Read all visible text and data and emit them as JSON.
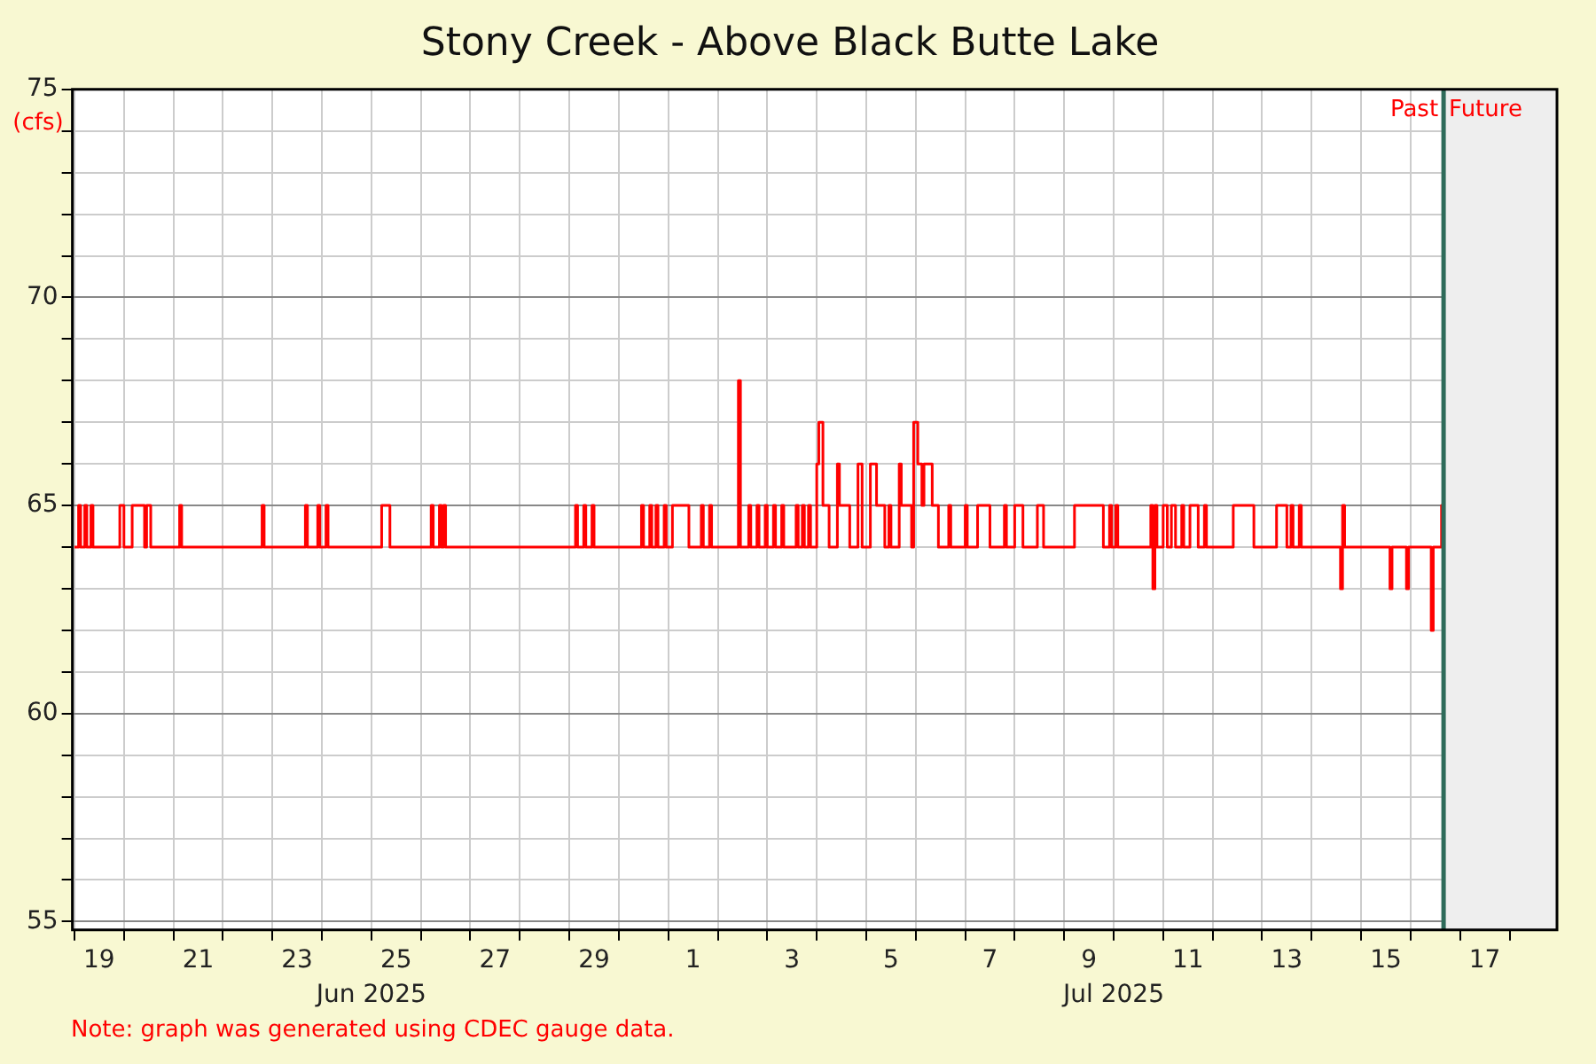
{
  "chart_data": {
    "type": "step",
    "title": "Stony Creek - Above Black Butte Lake",
    "ylabel": "(cfs)",
    "annotations": [
      "Note: graph was generated using CDEC gauge data."
    ],
    "color": "#ff0000",
    "x": [
      "2025-06-19T00:00",
      "2025-06-19T02:00",
      "2025-06-19T03:00",
      "2025-06-19T05:00",
      "2025-06-19T06:00",
      "2025-06-19T08:00",
      "2025-06-19T09:00",
      "2025-06-19T22:00",
      "2025-06-20T00:00",
      "2025-06-20T04:00",
      "2025-06-20T10:00",
      "2025-06-20T11:00",
      "2025-06-20T13:00",
      "2025-06-21T03:00",
      "2025-06-21T04:00",
      "2025-06-22T19:00",
      "2025-06-22T20:00",
      "2025-06-23T16:00",
      "2025-06-23T17:00",
      "2025-06-23T22:00",
      "2025-06-23T23:00",
      "2025-06-24T02:00",
      "2025-06-24T03:00",
      "2025-06-25T05:00",
      "2025-06-25T08:00",
      "2025-06-25T09:00",
      "2025-06-26T05:00",
      "2025-06-26T06:00",
      "2025-06-26T09:00",
      "2025-06-26T10:00",
      "2025-06-26T11:00",
      "2025-06-26T12:00",
      "2025-06-29T03:00",
      "2025-06-29T04:00",
      "2025-06-29T07:00",
      "2025-06-29T08:00",
      "2025-06-29T11:00",
      "2025-06-29T12:00",
      "2025-06-30T11:00",
      "2025-06-30T12:00",
      "2025-06-30T15:00",
      "2025-06-30T16:00",
      "2025-06-30T18:00",
      "2025-06-30T19:00",
      "2025-06-30T22:00",
      "2025-06-30T23:00",
      "2025-07-01T02:00",
      "2025-07-01T09:00",
      "2025-07-01T10:00",
      "2025-07-01T16:00",
      "2025-07-01T17:00",
      "2025-07-01T20:00",
      "2025-07-01T21:00",
      "2025-07-02T10:00",
      "2025-07-02T11:00",
      "2025-07-02T15:00",
      "2025-07-02T16:00",
      "2025-07-02T19:00",
      "2025-07-02T20:00",
      "2025-07-02T23:00",
      "2025-07-03T00:00",
      "2025-07-03T03:00",
      "2025-07-03T04:00",
      "2025-07-03T07:00",
      "2025-07-03T08:00",
      "2025-07-03T14:00",
      "2025-07-03T15:00",
      "2025-07-03T17:00",
      "2025-07-03T18:00",
      "2025-07-03T20:00",
      "2025-07-03T21:00",
      "2025-07-04T00:00",
      "2025-07-04T01:00",
      "2025-07-04T02:00",
      "2025-07-04T03:00",
      "2025-07-04T06:00",
      "2025-07-04T10:00",
      "2025-07-04T11:00",
      "2025-07-04T15:00",
      "2025-07-04T16:00",
      "2025-07-04T20:00",
      "2025-07-04T22:00",
      "2025-07-05T02:00",
      "2025-07-05T04:00",
      "2025-07-05T05:00",
      "2025-07-05T09:00",
      "2025-07-05T11:00",
      "2025-07-05T12:00",
      "2025-07-05T16:00",
      "2025-07-05T17:00",
      "2025-07-05T21:00",
      "2025-07-05T22:00",
      "2025-07-05T23:00",
      "2025-07-06T00:00",
      "2025-07-06T01:00",
      "2025-07-06T03:00",
      "2025-07-06T04:00",
      "2025-07-06T07:00",
      "2025-07-06T08:00",
      "2025-07-06T10:00",
      "2025-07-06T11:00",
      "2025-07-06T16:00",
      "2025-07-06T17:00",
      "2025-07-07T00:00",
      "2025-07-07T01:00",
      "2025-07-07T06:00",
      "2025-07-07T11:00",
      "2025-07-07T12:00",
      "2025-07-07T19:00",
      "2025-07-07T20:00",
      "2025-07-08T00:00",
      "2025-07-08T03:00",
      "2025-07-08T04:00",
      "2025-07-08T11:00",
      "2025-07-08T13:00",
      "2025-07-08T14:00",
      "2025-07-09T05:00",
      "2025-07-09T18:00",
      "2025-07-09T19:00",
      "2025-07-09T22:00",
      "2025-07-09T23:00",
      "2025-07-10T01:00",
      "2025-07-10T02:00",
      "2025-07-10T18:00",
      "2025-07-10T19:00",
      "2025-07-10T20:00",
      "2025-07-10T21:00",
      "2025-07-11T00:00",
      "2025-07-11T02:00",
      "2025-07-11T04:00",
      "2025-07-11T06:00",
      "2025-07-11T09:00",
      "2025-07-11T10:00",
      "2025-07-11T13:00",
      "2025-07-11T16:00",
      "2025-07-11T17:00",
      "2025-07-11T20:00",
      "2025-07-11T21:00",
      "2025-07-12T10:00",
      "2025-07-12T19:00",
      "2025-07-12T20:00",
      "2025-07-13T07:00",
      "2025-07-13T11:00",
      "2025-07-13T12:00",
      "2025-07-13T14:00",
      "2025-07-13T15:00",
      "2025-07-13T18:00",
      "2025-07-13T19:00",
      "2025-07-14T14:00",
      "2025-07-14T15:00",
      "2025-07-14T16:00",
      "2025-07-15T14:00",
      "2025-07-15T15:00",
      "2025-07-15T22:00",
      "2025-07-15T23:00",
      "2025-07-16T10:00",
      "2025-07-16T11:00",
      "2025-07-16T15:00",
      "2025-07-16T16:00"
    ],
    "values": [
      64,
      65,
      64,
      65,
      64,
      65,
      64,
      65,
      64,
      65,
      64,
      65,
      64,
      65,
      64,
      65,
      64,
      65,
      64,
      65,
      64,
      65,
      64,
      65,
      65,
      64,
      65,
      64,
      65,
      64,
      65,
      64,
      65,
      64,
      65,
      64,
      65,
      64,
      65,
      64,
      65,
      64,
      65,
      64,
      65,
      64,
      65,
      65,
      64,
      65,
      64,
      65,
      64,
      68,
      64,
      65,
      64,
      65,
      64,
      65,
      64,
      65,
      64,
      65,
      64,
      65,
      64,
      65,
      64,
      65,
      64,
      66,
      67,
      67,
      65,
      64,
      66,
      65,
      65,
      64,
      66,
      64,
      66,
      66,
      65,
      64,
      65,
      64,
      66,
      65,
      65,
      64,
      67,
      67,
      66,
      65,
      66,
      66,
      65,
      65,
      64,
      65,
      64,
      65,
      64,
      65,
      65,
      64,
      65,
      64,
      65,
      65,
      64,
      65,
      65,
      64,
      65,
      65,
      64,
      65,
      64,
      65,
      64,
      65,
      63,
      65,
      64,
      65,
      64,
      65,
      64,
      65,
      64,
      65,
      65,
      64,
      65,
      64,
      65,
      65,
      64,
      65,
      65,
      64,
      65,
      64,
      65,
      64,
      63,
      65,
      64,
      63,
      64,
      63,
      64,
      62,
      64,
      65,
      64
    ],
    "xlim": [
      "2025-06-18T23:00",
      "2025-07-18T23:00"
    ],
    "xticks": [
      {
        "value": "2025-06-19T00:00",
        "label": null
      },
      {
        "value": "2025-06-19T12:00",
        "label": "19"
      },
      {
        "value": "2025-06-20T00:00",
        "label": null
      },
      {
        "value": "2025-06-21T00:00",
        "label": null
      },
      {
        "value": "2025-06-21T12:00",
        "label": "21"
      },
      {
        "value": "2025-06-22T00:00",
        "label": null
      },
      {
        "value": "2025-06-23T00:00",
        "label": null
      },
      {
        "value": "2025-06-23T12:00",
        "label": "23"
      },
      {
        "value": "2025-06-24T00:00",
        "label": null
      },
      {
        "value": "2025-06-25T00:00",
        "label": null
      },
      {
        "value": "2025-06-25T12:00",
        "label": "25"
      },
      {
        "value": "2025-06-26T00:00",
        "label": null
      },
      {
        "value": "2025-06-27T00:00",
        "label": null
      },
      {
        "value": "2025-06-27T12:00",
        "label": "27"
      },
      {
        "value": "2025-06-28T00:00",
        "label": null
      },
      {
        "value": "2025-06-29T00:00",
        "label": null
      },
      {
        "value": "2025-06-29T12:00",
        "label": "29"
      },
      {
        "value": "2025-06-30T00:00",
        "label": null
      },
      {
        "value": "2025-07-01T00:00",
        "label": null
      },
      {
        "value": "2025-07-01T12:00",
        "label": "1"
      },
      {
        "value": "2025-07-02T00:00",
        "label": null
      },
      {
        "value": "2025-07-03T00:00",
        "label": null
      },
      {
        "value": "2025-07-03T12:00",
        "label": "3"
      },
      {
        "value": "2025-07-04T00:00",
        "label": null
      },
      {
        "value": "2025-07-05T00:00",
        "label": null
      },
      {
        "value": "2025-07-05T12:00",
        "label": "5"
      },
      {
        "value": "2025-07-06T00:00",
        "label": null
      },
      {
        "value": "2025-07-07T00:00",
        "label": null
      },
      {
        "value": "2025-07-07T12:00",
        "label": "7"
      },
      {
        "value": "2025-07-08T00:00",
        "label": null
      },
      {
        "value": "2025-07-09T00:00",
        "label": null
      },
      {
        "value": "2025-07-09T12:00",
        "label": "9"
      },
      {
        "value": "2025-07-10T00:00",
        "label": null
      },
      {
        "value": "2025-07-11T00:00",
        "label": null
      },
      {
        "value": "2025-07-11T12:00",
        "label": "11"
      },
      {
        "value": "2025-07-12T00:00",
        "label": null
      },
      {
        "value": "2025-07-13T00:00",
        "label": null
      },
      {
        "value": "2025-07-13T12:00",
        "label": "13"
      },
      {
        "value": "2025-07-14T00:00",
        "label": null
      },
      {
        "value": "2025-07-15T00:00",
        "label": null
      },
      {
        "value": "2025-07-15T12:00",
        "label": "15"
      },
      {
        "value": "2025-07-16T00:00",
        "label": null
      },
      {
        "value": "2025-07-17T00:00",
        "label": null
      },
      {
        "value": "2025-07-17T12:00",
        "label": "17"
      },
      {
        "value": "2025-07-18T00:00",
        "label": null
      }
    ],
    "x2lim": [
      "2025-06-18T23:00",
      "2025-07-18T23:00"
    ],
    "x2ticks": [
      {
        "value": "2025-06-25",
        "label": "Jun 2025"
      },
      {
        "value": "2025-07-10",
        "label": "Jul 2025"
      }
    ],
    "ylim": [
      54.8,
      75
    ],
    "yticks": [
      55,
      {
        "value": 56,
        "label": null
      },
      {
        "value": 57,
        "label": null
      },
      {
        "value": 58,
        "label": null
      },
      {
        "value": 59,
        "label": null
      },
      60,
      {
        "value": 61,
        "label": null
      },
      {
        "value": 62,
        "label": null
      },
      {
        "value": 63,
        "label": null
      },
      {
        "value": 64,
        "label": null
      },
      65,
      {
        "value": 66,
        "label": null
      },
      {
        "value": 67,
        "label": null
      },
      {
        "value": 68,
        "label": null
      },
      {
        "value": 69,
        "label": null
      },
      70,
      {
        "value": 71,
        "label": null
      },
      {
        "value": 72,
        "label": null
      },
      {
        "value": 73,
        "label": null
      },
      {
        "value": 74,
        "label": null
      },
      75
    ],
    "grid": true,
    "ref_lines": [
      {
        "axis": "x",
        "value": "2025-07-16T16:00",
        "label": "Past",
        "color": "#2e6b5a"
      }
    ],
    "bands": [
      {
        "axis": "x",
        "from": "2025-07-16T16:00",
        "to": "2025-07-18T23:00",
        "label": "Future",
        "color": "#eeeeee"
      }
    ]
  }
}
